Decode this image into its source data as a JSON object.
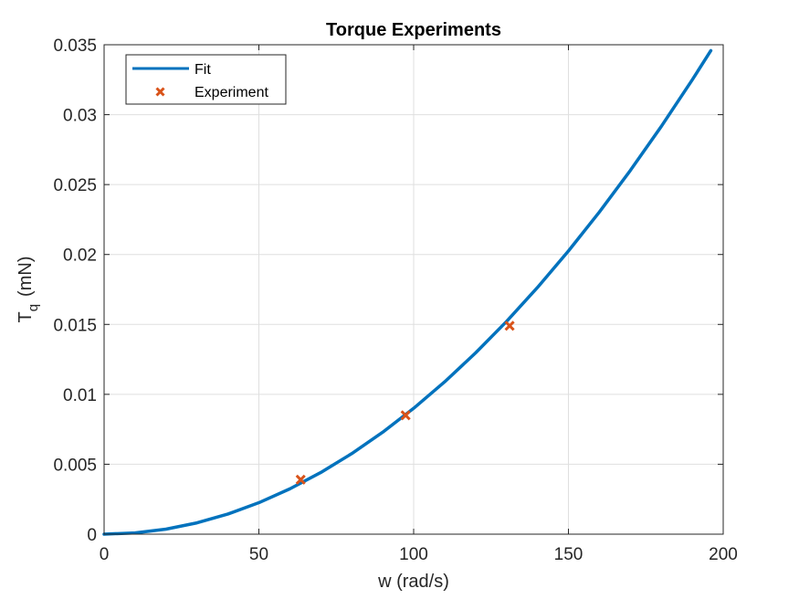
{
  "chart_data": {
    "type": "line",
    "title": "Torque Experiments",
    "xlabel": "w (rad/s)",
    "ylabel": {
      "main": "T",
      "sub": "q",
      "unit": "(mN)"
    },
    "xlim": [
      0,
      200
    ],
    "ylim": [
      0,
      0.035
    ],
    "xticks": [
      0,
      50,
      100,
      150,
      200
    ],
    "xtick_labels": [
      "0",
      "50",
      "100",
      "150",
      "200"
    ],
    "yticks": [
      0,
      0.005,
      0.01,
      0.015,
      0.02,
      0.025,
      0.03,
      0.035
    ],
    "ytick_labels": [
      "0",
      "0.005",
      "0.01",
      "0.015",
      "0.02",
      "0.025",
      "0.03",
      "0.035"
    ],
    "grid": true,
    "legend_position": "top-left",
    "series": [
      {
        "name": "Fit",
        "kind": "line",
        "color": "#0072BD",
        "x": [
          0,
          10,
          20,
          30,
          40,
          50,
          60,
          70,
          80,
          90,
          100,
          110,
          120,
          130,
          140,
          150,
          160,
          170,
          180,
          190,
          196
        ],
        "y": [
          0,
          9e-05,
          0.00036,
          0.00081,
          0.00144,
          0.00225,
          0.00324,
          0.00441,
          0.00576,
          0.00729,
          0.009,
          0.01089,
          0.01296,
          0.01521,
          0.01764,
          0.02025,
          0.02304,
          0.02601,
          0.02916,
          0.03249,
          0.03458
        ]
      },
      {
        "name": "Experiment",
        "kind": "marker",
        "marker": "x",
        "color": "#D95319",
        "x": [
          63.5,
          97.4,
          131.0
        ],
        "y": [
          0.0039,
          0.0085,
          0.0149
        ]
      }
    ]
  }
}
